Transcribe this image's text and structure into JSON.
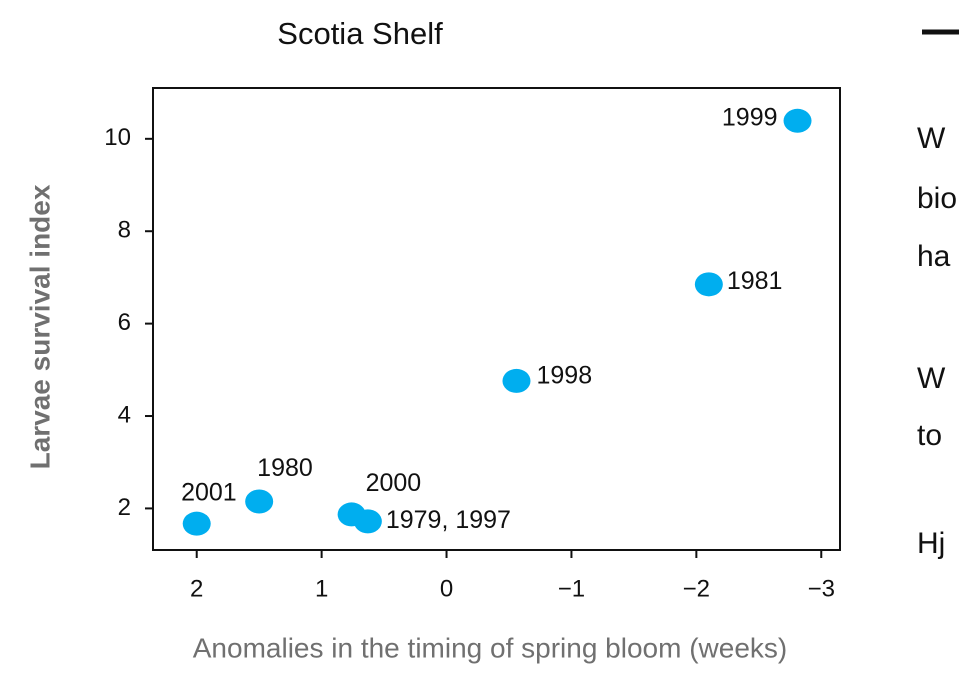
{
  "chart_data": {
    "type": "scatter",
    "title": "Scotia Shelf",
    "x_label": "Anomalies in the timing of spring bloom (weeks)",
    "y_label": "Larvae survival index",
    "color": "#00aeef",
    "x": [
      -2.81,
      -2.1,
      -0.56,
      1.5,
      2.0,
      0.76,
      0.63
    ],
    "values": [
      10.39,
      6.85,
      4.76,
      2.15,
      1.67,
      1.87,
      1.72
    ],
    "point_labels": [
      "1999",
      "1981",
      "1998",
      "1980",
      "2001",
      "2000",
      "1979, 1997"
    ],
    "xlim": [
      2.35,
      -3.15
    ],
    "xticks": [
      2,
      1,
      0,
      {
        "value": -1,
        "label": "−1"
      },
      {
        "value": -2,
        "label": "−2"
      },
      {
        "value": -3,
        "label": "−3"
      }
    ],
    "ylim": [
      1.1,
      11.1
    ],
    "yticks": [
      2,
      4,
      6,
      8,
      10
    ]
  },
  "side_text": [
    "W",
    "bio",
    "ha",
    "W",
    "to",
    "Hj"
  ]
}
